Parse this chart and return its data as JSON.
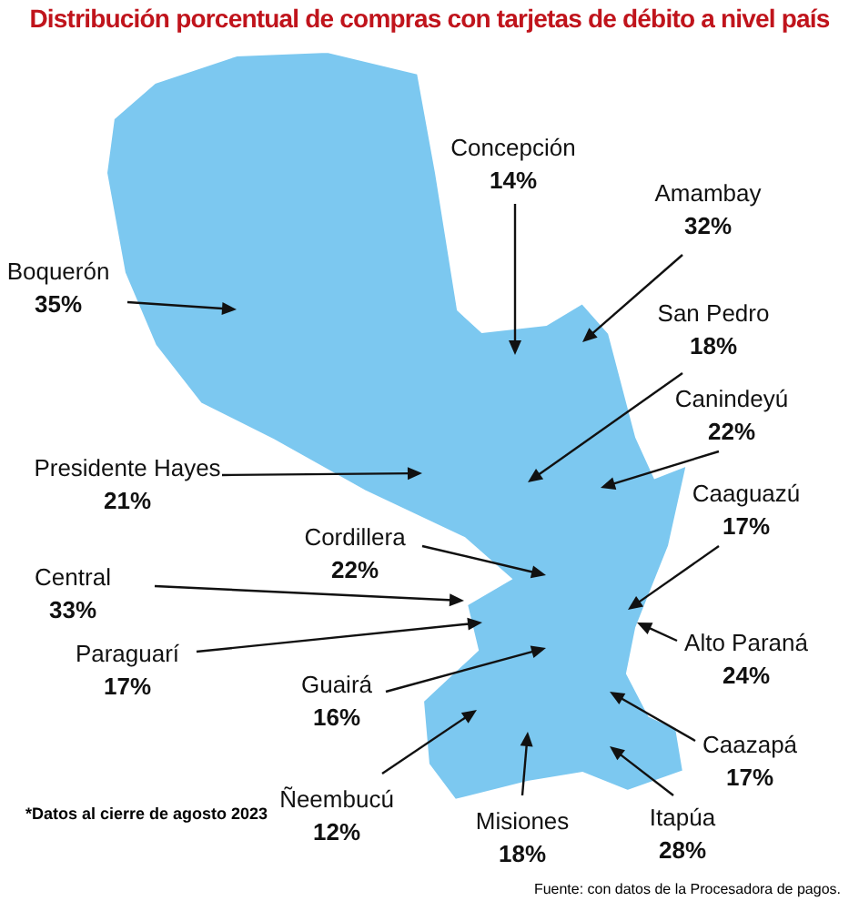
{
  "chart_data": {
    "type": "other",
    "title": "Distribución porcentual de compras con tarjetas de débito a nivel país",
    "categories": [
      "Concepción",
      "Amambay",
      "San Pedro",
      "Canindeyú",
      "Caaguazú",
      "Alto Paraná",
      "Caazapá",
      "Itapúa",
      "Misiones",
      "Ñeembucú",
      "Guairá",
      "Paraguarí",
      "Central",
      "Cordillera",
      "Presidente Hayes",
      "Boquerón"
    ],
    "values": [
      14,
      32,
      18,
      22,
      17,
      24,
      17,
      28,
      18,
      12,
      16,
      17,
      33,
      22,
      21,
      35
    ],
    "value_labels": [
      "14%",
      "32%",
      "18%",
      "22%",
      "17%",
      "24%",
      "17%",
      "28%",
      "18%",
      "12%",
      "16%",
      "17%",
      "33%",
      "22%",
      "21%",
      "35%"
    ],
    "color": "#7cc8f0",
    "annotations": [
      "*Datos al cierre de agosto 2023",
      "Fuente: con datos de la Procesadora de pagos."
    ]
  }
}
